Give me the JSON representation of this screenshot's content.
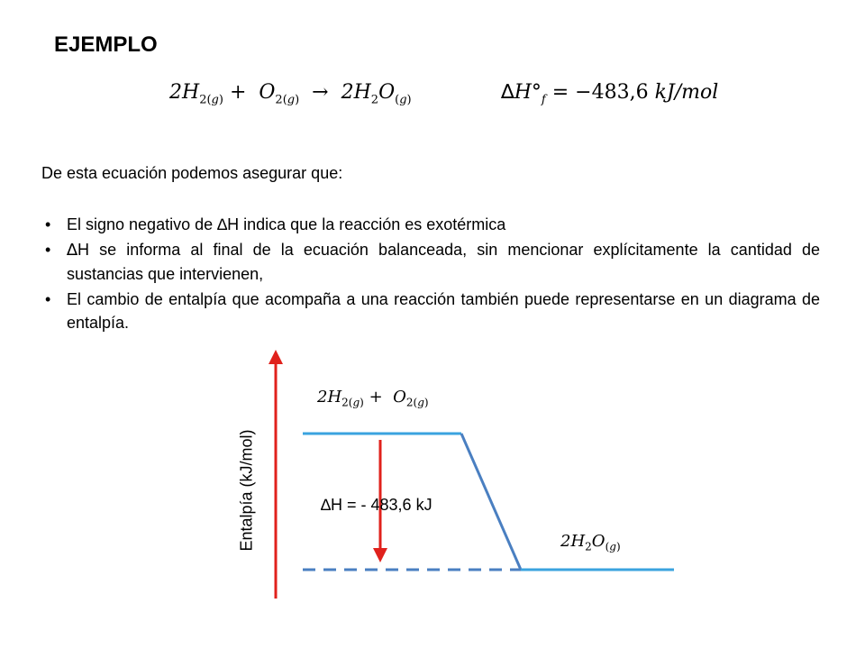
{
  "slide": {
    "title": "EJEMPLO",
    "equation": {
      "coef_h2": "2",
      "h2": "H",
      "h2_sub": "2(",
      "h2_state": "g",
      "h2_close": ")",
      "plus": "+",
      "o2": "O",
      "o2_sub": "2(",
      "o2_state": "g",
      "o2_close": ")",
      "arrow": "→",
      "coef_h2o": "2",
      "h2o_h": "H",
      "h2o_sub": "2",
      "h2o_o": "O",
      "h2o_state_open": "(",
      "h2o_state": "g",
      "h2o_state_close": ")",
      "delta": "∆",
      "h_symbol": "H°",
      "f_sub": "f",
      "value": "= −483,6",
      "unit": "kJ/mol"
    },
    "intro": "De esta ecuación  podemos asegurar que:",
    "bullets": [
      {
        "bullet": "•",
        "delta": "",
        "text": "El signo negativo de ∆H indica que la reacción es exotérmica"
      },
      {
        "bullet": "•",
        "delta": "∆",
        "text": "H se informa al final de la ecuación balanceada, sin mencionar explícitamente la cantidad de sustancias que intervienen,"
      },
      {
        "bullet": "•",
        "delta": "",
        "text": "El cambio de entalpía que acompaña a una reacción también puede representarse en un diagrama de entalpía."
      }
    ]
  },
  "diagram": {
    "y_axis_label": "Entalpía (kJ/mol)",
    "reactants": {
      "coef": "2",
      "h2": "H",
      "h2_sub": "2(",
      "h2_state": "g",
      "h2_close": ")",
      "plus": "+",
      "o2": "O",
      "o2_sub": "2(",
      "o2_state": "g",
      "o2_close": ")"
    },
    "products": {
      "coef": "2",
      "h": "H",
      "h_sub": "2",
      "o": "O",
      "state_open": "(",
      "state": "g",
      "state_close": ")"
    },
    "delta_h_label": "∆H = - 483,6  kJ",
    "colors": {
      "axis_arrow": "#e0211c",
      "level_line": "#3aa3df",
      "connector": "#4a7fc1",
      "dashed_line": "#4a7fc1",
      "delta_arrow": "#e0211c"
    }
  }
}
